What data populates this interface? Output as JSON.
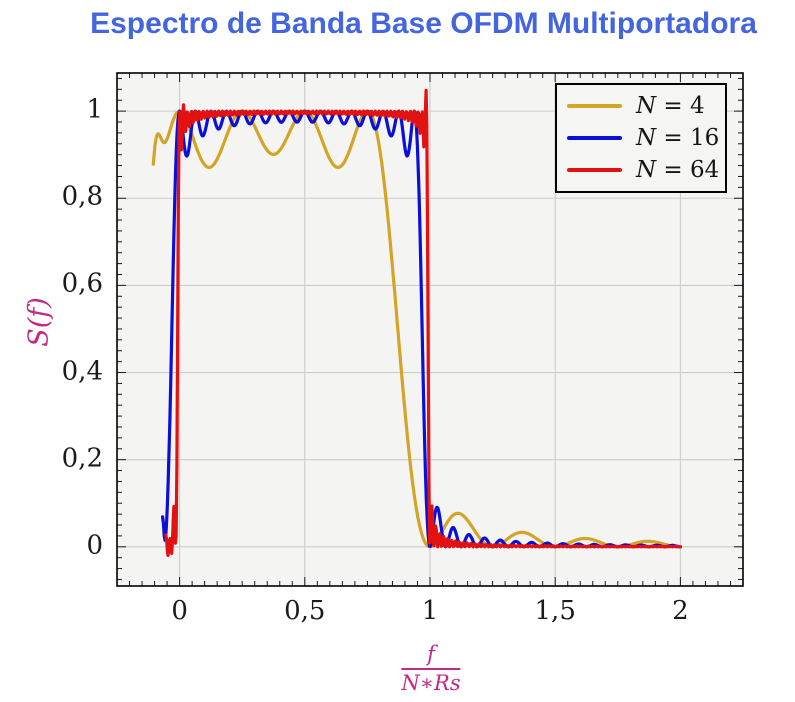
{
  "chart_data": {
    "type": "line",
    "title": "Espectro de Banda Base OFDM Multiportadora",
    "title_color": "#4365DD",
    "ylabel": "S(f)",
    "xlabel": {
      "numerator": "f",
      "denominator": "N∗Rs"
    },
    "axis_label_color": "#C42882",
    "xlim": [
      -0.25,
      2.25
    ],
    "ylim": [
      -0.09,
      1.0875
    ],
    "x_major_ticks": [
      0,
      0.5,
      1,
      1.5,
      2
    ],
    "x_tick_labels": [
      "0",
      "0,5",
      "1",
      "1,5",
      "2"
    ],
    "x_minor_step": 0.05,
    "y_major_ticks": [
      0,
      0.2,
      0.4,
      0.6,
      0.8,
      1
    ],
    "y_tick_labels": [
      "0",
      "0,2",
      "0,4",
      "0,6",
      "0,8",
      "1"
    ],
    "y_minor_step": 0.025,
    "grid": true,
    "grid_color": "#cccccc",
    "plot_background": "#f4f4f2",
    "legend_position": "top-right",
    "model": "S(x) = sum_{k=0}^{N-1} sinc^2(N*x - k), x = f/(N*Rs); flat passband ~1 over 0<x<1, first null at x=1, decaying sidelobes to x=2",
    "series": [
      {
        "name": "N = 4",
        "label_var": "N",
        "label_value": "4",
        "N": 4,
        "color": "#D4A427",
        "domain": [
          -0.105,
          2.0
        ],
        "samples": 620,
        "edge_bumps": [
          {
            "amp": 0.27,
            "center": -0.102,
            "sigma": 0.034
          }
        ],
        "key_points": "peaks 1.0 at x=0,0.25,0.5,0.75; dips ~0.87; falls after 0.78; zero at 1.0; sidelobes 0.08 @1.11, 0.04 @1.36"
      },
      {
        "name": "N = 16",
        "label_var": "N",
        "label_value": "16",
        "N": 16,
        "color": "#0A10D8",
        "domain": [
          -0.068,
          2.0
        ],
        "samples": 640,
        "edge_bumps": [
          {
            "amp": 0.06,
            "center": -0.067,
            "sigma": 0.006
          }
        ],
        "key_points": "rises from (-0.07,0.08); ripple dips 0.90-0.95; falls at 0.94-1.0; sidelobe 0.10 @1.03"
      },
      {
        "name": "N = 64",
        "label_var": "N",
        "label_value": "64",
        "N": 64,
        "color": "#E31212",
        "domain": [
          -0.055,
          2.0
        ],
        "samples": 700,
        "edge_bumps": [
          {
            "amp": -0.028,
            "center": -0.04,
            "sigma": 0.011
          },
          {
            "amp": 0.016,
            "center": 0.013,
            "sigma": 0.008
          },
          {
            "amp": 0.048,
            "center": 0.984,
            "sigma": 0.0055
          }
        ],
        "key_points": "dips to -0.02 at x=-0.04; flat ~1 with fine ripple; overshoot spike ~1.04 just before x=1; sharp fall at 1.0; tiny sidelobes"
      }
    ]
  }
}
